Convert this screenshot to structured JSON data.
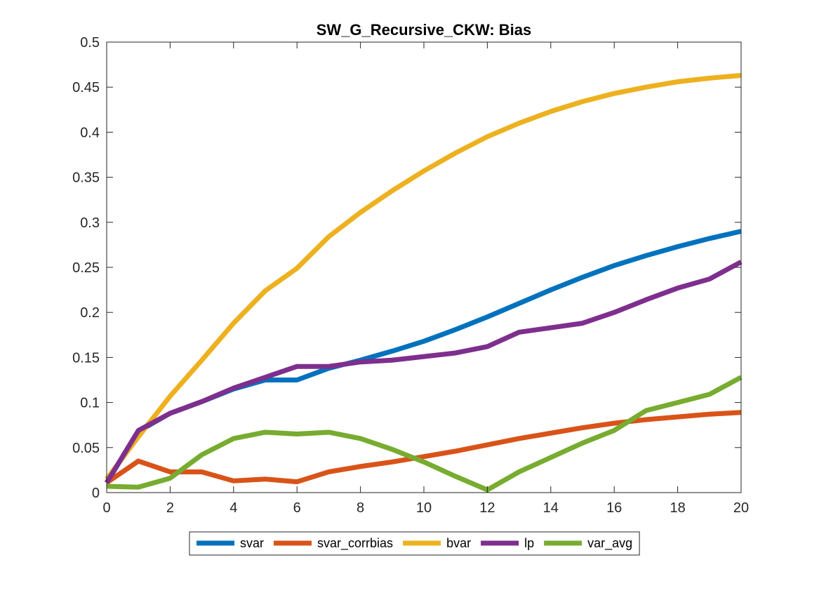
{
  "chart_data": {
    "type": "line",
    "title": "SW_G_Recursive_CKW: Bias",
    "xlabel": "",
    "ylabel": "",
    "xlim": [
      0,
      20
    ],
    "ylim": [
      0,
      0.5
    ],
    "x_ticks": [
      0,
      2,
      4,
      6,
      8,
      10,
      12,
      14,
      16,
      18,
      20
    ],
    "y_ticks": [
      0,
      0.05,
      0.1,
      0.15,
      0.2,
      0.25,
      0.3,
      0.35,
      0.4,
      0.45,
      0.5
    ],
    "x_tick_labels": [
      "0",
      "2",
      "4",
      "6",
      "8",
      "10",
      "12",
      "14",
      "16",
      "18",
      "20"
    ],
    "y_tick_labels": [
      "0",
      "0.05",
      "0.1",
      "0.15",
      "0.2",
      "0.25",
      "0.3",
      "0.35",
      "0.4",
      "0.45",
      "0.5"
    ],
    "grid": false,
    "legend_position": "bottom-outside",
    "x": [
      0,
      1,
      2,
      3,
      4,
      5,
      6,
      7,
      8,
      9,
      10,
      11,
      12,
      13,
      14,
      15,
      16,
      17,
      18,
      19,
      20
    ],
    "series": [
      {
        "name": "svar",
        "color": "#0072BD",
        "values": [
          0.011,
          0.068,
          0.088,
          0.101,
          0.115,
          0.125,
          0.125,
          0.138,
          0.147,
          0.157,
          0.168,
          0.181,
          0.195,
          0.21,
          0.225,
          0.239,
          0.252,
          0.263,
          0.273,
          0.282,
          0.29
        ]
      },
      {
        "name": "svar_corrbias",
        "color": "#D95319",
        "values": [
          0.011,
          0.035,
          0.023,
          0.023,
          0.013,
          0.015,
          0.012,
          0.023,
          0.029,
          0.034,
          0.04,
          0.046,
          0.053,
          0.06,
          0.066,
          0.072,
          0.077,
          0.081,
          0.084,
          0.087,
          0.089
        ]
      },
      {
        "name": "bvar",
        "color": "#EDB120",
        "values": [
          0.015,
          0.062,
          0.107,
          0.147,
          0.188,
          0.224,
          0.249,
          0.284,
          0.311,
          0.335,
          0.357,
          0.377,
          0.395,
          0.41,
          0.423,
          0.434,
          0.443,
          0.45,
          0.456,
          0.46,
          0.463
        ]
      },
      {
        "name": "lp",
        "color": "#7E2F8E",
        "values": [
          0.011,
          0.069,
          0.088,
          0.101,
          0.116,
          0.128,
          0.14,
          0.14,
          0.145,
          0.147,
          0.151,
          0.155,
          0.162,
          0.178,
          0.183,
          0.188,
          0.2,
          0.214,
          0.227,
          0.237,
          0.256
        ]
      },
      {
        "name": "var_avg",
        "color": "#77AC30",
        "values": [
          0.007,
          0.006,
          0.016,
          0.042,
          0.06,
          0.067,
          0.065,
          0.067,
          0.06,
          0.048,
          0.034,
          0.018,
          0.003,
          0.023,
          0.039,
          0.055,
          0.069,
          0.091,
          0.1,
          0.109,
          0.128
        ]
      }
    ]
  }
}
